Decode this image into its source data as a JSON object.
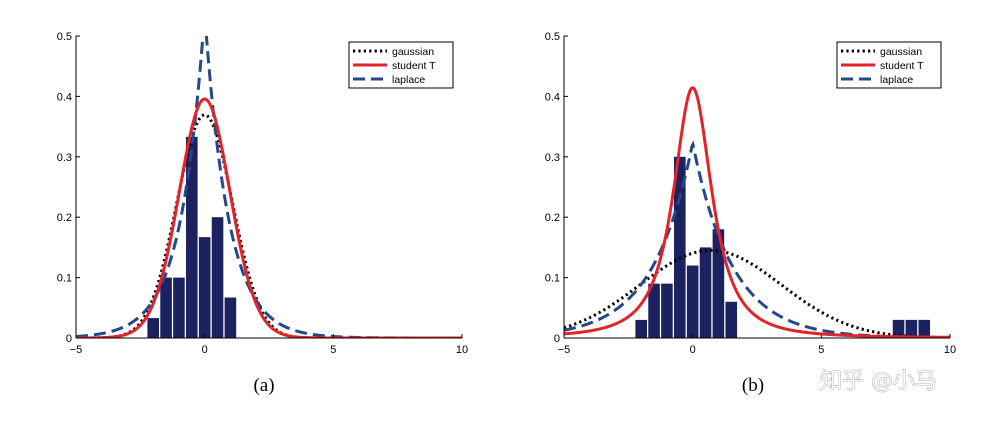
{
  "chart_data": [
    {
      "type": "bar",
      "panel_label": "(a)",
      "xlim": [
        -5,
        10
      ],
      "ylim": [
        0,
        0.5
      ],
      "xticks": [
        "-5",
        "0",
        "5",
        "10"
      ],
      "yticks": [
        "0",
        "0.1",
        "0.2",
        "0.3",
        "0.4",
        "0.5"
      ],
      "grid": false,
      "legend_position": "top-right",
      "histogram": {
        "bin_centers": [
          -2.0,
          -1.5,
          -1.0,
          -0.5,
          0.0,
          0.5,
          1.0,
          1.5,
          2.0
        ],
        "values": [
          0.033,
          0.1,
          0.1,
          0.333,
          0.167,
          0.2,
          0.067,
          0.0,
          0.0
        ],
        "color": "#1c2160"
      },
      "series": [
        {
          "name": "gaussian",
          "style": "dotted",
          "color": "#000000",
          "dist": "gaussian",
          "mu": 0.0,
          "sigma": 1.08
        },
        {
          "name": "student T",
          "style": "solid",
          "color": "#e3222a",
          "dist": "student",
          "mu": 0.0,
          "scale": 1.0,
          "nu": 30
        },
        {
          "name": "laplace",
          "style": "dashed",
          "color": "#25488c",
          "dist": "laplace",
          "mu": 0.0,
          "b": 0.93
        }
      ]
    },
    {
      "type": "bar",
      "panel_label": "(b)",
      "xlim": [
        -5,
        10
      ],
      "ylim": [
        0,
        0.5
      ],
      "xticks": [
        "-5",
        "0",
        "5",
        "10"
      ],
      "yticks": [
        "0",
        "0.1",
        "0.2",
        "0.3",
        "0.4",
        "0.5"
      ],
      "grid": false,
      "legend_position": "top-right",
      "histogram": {
        "bin_centers": [
          -2.0,
          -1.5,
          -1.0,
          -0.5,
          0.0,
          0.5,
          1.0,
          1.5,
          2.0,
          8.0,
          8.5,
          9.0
        ],
        "values": [
          0.03,
          0.09,
          0.09,
          0.3,
          0.12,
          0.15,
          0.18,
          0.06,
          0.0,
          0.03,
          0.03,
          0.03
        ],
        "color": "#1c2160"
      },
      "series": [
        {
          "name": "gaussian",
          "style": "dotted",
          "color": "#000000",
          "dist": "gaussian",
          "mu": 0.7,
          "sigma": 2.75
        },
        {
          "name": "student T",
          "style": "solid",
          "color": "#e3222a",
          "dist": "student",
          "mu": 0.0,
          "scale": 0.83,
          "nu": 1.6
        },
        {
          "name": "laplace",
          "style": "dashed",
          "color": "#25488c",
          "dist": "laplace",
          "mu": 0.0,
          "b": 1.55
        }
      ]
    }
  ],
  "watermark": "知乎 @小马"
}
